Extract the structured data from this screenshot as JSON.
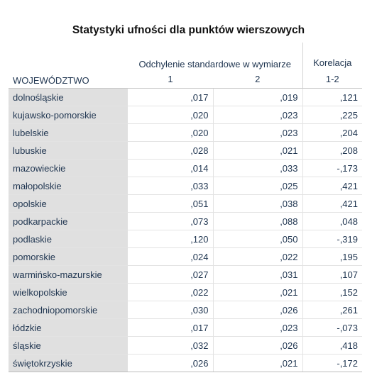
{
  "title": "Statystyki ufności dla punktów wierszowych",
  "header": {
    "group_label": "Odchylenie standardowe w wymiarze",
    "korelacja_label": "Korelacja",
    "row_header": "WOJEWÓDZTWO",
    "col1": "1",
    "col2": "2",
    "col3": "1-2"
  },
  "rows": [
    {
      "name": "dolnośląskie",
      "v1": ",017",
      "v2": ",019",
      "v3": ",121"
    },
    {
      "name": "kujawsko-pomorskie",
      "v1": ",020",
      "v2": ",023",
      "v3": ",225"
    },
    {
      "name": "lubelskie",
      "v1": ",020",
      "v2": ",023",
      "v3": ",204"
    },
    {
      "name": "lubuskie",
      "v1": ",028",
      "v2": ",021",
      "v3": ",208"
    },
    {
      "name": "mazowieckie",
      "v1": ",014",
      "v2": ",033",
      "v3": "-,173"
    },
    {
      "name": "małopolskie",
      "v1": ",033",
      "v2": ",025",
      "v3": ",421"
    },
    {
      "name": "opolskie",
      "v1": ",051",
      "v2": ",038",
      "v3": ",421"
    },
    {
      "name": "podkarpackie",
      "v1": ",073",
      "v2": ",088",
      "v3": ",048"
    },
    {
      "name": "podlaskie",
      "v1": ",120",
      "v2": ",050",
      "v3": "-,319"
    },
    {
      "name": "pomorskie",
      "v1": ",024",
      "v2": ",022",
      "v3": ",195"
    },
    {
      "name": "warmińsko-mazurskie",
      "v1": ",027",
      "v2": ",031",
      "v3": ",107"
    },
    {
      "name": "wielkopolskie",
      "v1": ",022",
      "v2": ",021",
      "v3": ",152"
    },
    {
      "name": "zachodniopomorskie",
      "v1": ",030",
      "v2": ",026",
      "v3": ",261"
    },
    {
      "name": "łódzkie",
      "v1": ",017",
      "v2": ",023",
      "v3": "-,073"
    },
    {
      "name": "śląskie",
      "v1": ",032",
      "v2": ",026",
      "v3": ",418"
    },
    {
      "name": "świętokrzyskie",
      "v1": ",026",
      "v2": ",021",
      "v3": "-,172"
    }
  ]
}
